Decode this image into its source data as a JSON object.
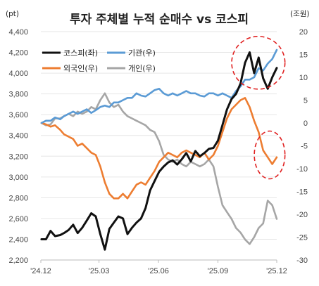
{
  "chart_data": {
    "type": "line",
    "title": "투자 주체별 누적 순매수 vs 코스피",
    "left_axis": {
      "unit_label": "(pt)",
      "ylim": [
        2200,
        4400
      ],
      "ticks": [
        2200,
        2400,
        2600,
        2800,
        3000,
        3200,
        3400,
        3600,
        3800,
        4000,
        4200,
        4400
      ],
      "tick_labels": [
        "2,200",
        "2,400",
        "2,600",
        "2,800",
        "3,000",
        "3,200",
        "3,400",
        "3,600",
        "3,800",
        "4,000",
        "4,200",
        "4,400"
      ]
    },
    "right_axis": {
      "unit_label": "(조원)",
      "ylim": [
        -30,
        20
      ],
      "ticks": [
        20,
        15,
        10,
        5,
        0,
        -5,
        -10,
        -15,
        -20,
        -25,
        -30
      ],
      "tick_labels": [
        "20",
        "15",
        "10",
        "5",
        "0",
        "-5",
        "-10",
        "-15",
        "-20",
        "-25",
        "-30"
      ]
    },
    "x_axis": {
      "range": [
        "2024-12",
        "2025-12"
      ],
      "ticks": [
        "2024-12",
        "2025-03",
        "2025-06",
        "2025-09",
        "2025-12"
      ],
      "tick_labels": [
        "'24.12",
        "'25.03",
        "'25.06",
        "'25.09",
        "'25.12"
      ]
    },
    "series": [
      {
        "name": "코스피(좌)",
        "axis": "left",
        "color": "#111111",
        "points": [
          [
            "2024-12-02",
            2400
          ],
          [
            "2024-12-09",
            2400
          ],
          [
            "2024-12-16",
            2480
          ],
          [
            "2024-12-23",
            2430
          ],
          [
            "2024-12-31",
            2440
          ],
          [
            "2025-01-06",
            2460
          ],
          [
            "2025-01-13",
            2490
          ],
          [
            "2025-01-20",
            2540
          ],
          [
            "2025-01-27",
            2460
          ],
          [
            "2025-02-03",
            2510
          ],
          [
            "2025-02-10",
            2580
          ],
          [
            "2025-02-17",
            2650
          ],
          [
            "2025-02-24",
            2620
          ],
          [
            "2025-03-03",
            2450
          ],
          [
            "2025-03-10",
            2300
          ],
          [
            "2025-03-17",
            2500
          ],
          [
            "2025-03-24",
            2560
          ],
          [
            "2025-03-31",
            2620
          ],
          [
            "2025-04-07",
            2600
          ],
          [
            "2025-04-14",
            2450
          ],
          [
            "2025-04-21",
            2510
          ],
          [
            "2025-04-28",
            2560
          ],
          [
            "2025-05-05",
            2600
          ],
          [
            "2025-05-12",
            2700
          ],
          [
            "2025-05-19",
            2870
          ],
          [
            "2025-05-26",
            2960
          ],
          [
            "2025-06-02",
            3050
          ],
          [
            "2025-06-09",
            3100
          ],
          [
            "2025-06-16",
            3140
          ],
          [
            "2025-06-23",
            3160
          ],
          [
            "2025-06-30",
            3120
          ],
          [
            "2025-07-07",
            3170
          ],
          [
            "2025-07-14",
            3230
          ],
          [
            "2025-07-21",
            3150
          ],
          [
            "2025-07-28",
            3250
          ],
          [
            "2025-08-04",
            3200
          ],
          [
            "2025-08-11",
            3230
          ],
          [
            "2025-08-18",
            3270
          ],
          [
            "2025-08-25",
            3280
          ],
          [
            "2025-09-01",
            3350
          ],
          [
            "2025-09-08",
            3500
          ],
          [
            "2025-09-15",
            3650
          ],
          [
            "2025-09-22",
            3750
          ],
          [
            "2025-09-29",
            3800
          ],
          [
            "2025-10-06",
            3900
          ],
          [
            "2025-10-13",
            4100
          ],
          [
            "2025-10-20",
            4200
          ],
          [
            "2025-10-27",
            4000
          ],
          [
            "2025-11-03",
            4150
          ],
          [
            "2025-11-10",
            3950
          ],
          [
            "2025-11-17",
            3850
          ],
          [
            "2025-11-24",
            3960
          ],
          [
            "2025-12-01",
            4050
          ]
        ]
      },
      {
        "name": "기관(우)",
        "axis": "right",
        "color": "#5b9bd5",
        "points": [
          [
            "2024-12-02",
            0
          ],
          [
            "2024-12-09",
            0.5
          ],
          [
            "2024-12-16",
            0.5
          ],
          [
            "2024-12-23",
            1.2
          ],
          [
            "2024-12-31",
            0.8
          ],
          [
            "2025-01-06",
            1.5
          ],
          [
            "2025-01-13",
            2.0
          ],
          [
            "2025-01-20",
            2.5
          ],
          [
            "2025-01-27",
            2.0
          ],
          [
            "2025-02-03",
            2.5
          ],
          [
            "2025-02-10",
            3.0
          ],
          [
            "2025-02-17",
            2.2
          ],
          [
            "2025-02-24",
            2.8
          ],
          [
            "2025-03-03",
            3.5
          ],
          [
            "2025-03-10",
            3.8
          ],
          [
            "2025-03-17",
            3.5
          ],
          [
            "2025-03-24",
            4.5
          ],
          [
            "2025-03-31",
            4.5
          ],
          [
            "2025-04-07",
            5.0
          ],
          [
            "2025-04-14",
            5.5
          ],
          [
            "2025-04-21",
            5.5
          ],
          [
            "2025-04-28",
            6.5
          ],
          [
            "2025-05-05",
            6.0
          ],
          [
            "2025-05-12",
            5.8
          ],
          [
            "2025-05-19",
            6.5
          ],
          [
            "2025-05-26",
            7.2
          ],
          [
            "2025-06-02",
            7.5
          ],
          [
            "2025-06-09",
            6.5
          ],
          [
            "2025-06-16",
            6.0
          ],
          [
            "2025-06-23",
            6.5
          ],
          [
            "2025-06-30",
            6.0
          ],
          [
            "2025-07-07",
            6.5
          ],
          [
            "2025-07-14",
            7.0
          ],
          [
            "2025-07-21",
            6.5
          ],
          [
            "2025-07-28",
            6.5
          ],
          [
            "2025-08-04",
            6.0
          ],
          [
            "2025-08-11",
            5.8
          ],
          [
            "2025-08-18",
            6.5
          ],
          [
            "2025-08-25",
            6.5
          ],
          [
            "2025-09-01",
            6.0
          ],
          [
            "2025-09-08",
            6.5
          ],
          [
            "2025-09-15",
            6.0
          ],
          [
            "2025-09-22",
            5.5
          ],
          [
            "2025-09-29",
            7.0
          ],
          [
            "2025-10-06",
            8.0
          ],
          [
            "2025-10-13",
            9.5
          ],
          [
            "2025-10-20",
            9.5
          ],
          [
            "2025-10-27",
            10.0
          ],
          [
            "2025-11-03",
            12.0
          ],
          [
            "2025-11-10",
            11.5
          ],
          [
            "2025-11-17",
            13.0
          ],
          [
            "2025-11-24",
            14.0
          ],
          [
            "2025-12-01",
            16.0
          ]
        ]
      },
      {
        "name": "외국인(우)",
        "axis": "right",
        "color": "#ed7d31",
        "points": [
          [
            "2024-12-02",
            0
          ],
          [
            "2024-12-09",
            -0.3
          ],
          [
            "2024-12-16",
            -0.8
          ],
          [
            "2024-12-23",
            -0.5
          ],
          [
            "2024-12-31",
            -1.5
          ],
          [
            "2025-01-06",
            -2.5
          ],
          [
            "2025-01-13",
            -3.0
          ],
          [
            "2025-01-20",
            -3.5
          ],
          [
            "2025-01-27",
            -5.0
          ],
          [
            "2025-02-03",
            -4.5
          ],
          [
            "2025-02-10",
            -5.5
          ],
          [
            "2025-02-17",
            -6.5
          ],
          [
            "2025-02-24",
            -7.0
          ],
          [
            "2025-03-03",
            -9.5
          ],
          [
            "2025-03-10",
            -13.0
          ],
          [
            "2025-03-17",
            -15.5
          ],
          [
            "2025-03-24",
            -16.5
          ],
          [
            "2025-03-31",
            -16.5
          ],
          [
            "2025-04-07",
            -15.5
          ],
          [
            "2025-04-14",
            -16.5
          ],
          [
            "2025-04-21",
            -15.0
          ],
          [
            "2025-04-28",
            -13.5
          ],
          [
            "2025-05-05",
            -13.0
          ],
          [
            "2025-05-12",
            -13.5
          ],
          [
            "2025-05-19",
            -12.0
          ],
          [
            "2025-05-26",
            -10.5
          ],
          [
            "2025-06-02",
            -8.5
          ],
          [
            "2025-06-09",
            -7.5
          ],
          [
            "2025-06-16",
            -6.5
          ],
          [
            "2025-06-23",
            -7.0
          ],
          [
            "2025-06-30",
            -7.5
          ],
          [
            "2025-07-07",
            -6.5
          ],
          [
            "2025-07-14",
            -6.0
          ],
          [
            "2025-07-21",
            -6.5
          ],
          [
            "2025-07-28",
            -7.0
          ],
          [
            "2025-08-04",
            -7.5
          ],
          [
            "2025-08-11",
            -6.5
          ],
          [
            "2025-08-18",
            -8.0
          ],
          [
            "2025-08-25",
            -7.0
          ],
          [
            "2025-09-01",
            -5.0
          ],
          [
            "2025-09-08",
            -2.0
          ],
          [
            "2025-09-15",
            1.0
          ],
          [
            "2025-09-22",
            3.0
          ],
          [
            "2025-09-29",
            4.0
          ],
          [
            "2025-10-06",
            5.0
          ],
          [
            "2025-10-13",
            5.5
          ],
          [
            "2025-10-20",
            3.5
          ],
          [
            "2025-10-27",
            0.5
          ],
          [
            "2025-11-03",
            -2.0
          ],
          [
            "2025-11-10",
            -6.0
          ],
          [
            "2025-11-17",
            -7.5
          ],
          [
            "2025-11-24",
            -9.0
          ],
          [
            "2025-12-01",
            -7.5
          ]
        ]
      },
      {
        "name": "개인(우)",
        "axis": "right",
        "color": "#a6a6a6",
        "points": [
          [
            "2024-12-02",
            0
          ],
          [
            "2024-12-09",
            -0.5
          ],
          [
            "2024-12-16",
            -0.3
          ],
          [
            "2024-12-23",
            1.0
          ],
          [
            "2024-12-31",
            1.0
          ],
          [
            "2025-01-06",
            1.5
          ],
          [
            "2025-01-13",
            2.0
          ],
          [
            "2025-01-20",
            1.5
          ],
          [
            "2025-01-27",
            2.5
          ],
          [
            "2025-02-03",
            2.0
          ],
          [
            "2025-02-10",
            2.5
          ],
          [
            "2025-02-17",
            3.5
          ],
          [
            "2025-02-24",
            3.0
          ],
          [
            "2025-03-03",
            5.0
          ],
          [
            "2025-03-10",
            6.5
          ],
          [
            "2025-03-17",
            4.5
          ],
          [
            "2025-03-24",
            3.5
          ],
          [
            "2025-03-31",
            4.0
          ],
          [
            "2025-04-07",
            2.5
          ],
          [
            "2025-04-14",
            1.5
          ],
          [
            "2025-04-21",
            1.0
          ],
          [
            "2025-04-28",
            0.5
          ],
          [
            "2025-05-05",
            0.0
          ],
          [
            "2025-05-12",
            -0.5
          ],
          [
            "2025-05-19",
            -1.5
          ],
          [
            "2025-05-26",
            -2.0
          ],
          [
            "2025-06-02",
            -4.0
          ],
          [
            "2025-06-09",
            -7.0
          ],
          [
            "2025-06-16",
            -8.0
          ],
          [
            "2025-06-23",
            -8.5
          ],
          [
            "2025-06-30",
            -8.0
          ],
          [
            "2025-07-07",
            -9.0
          ],
          [
            "2025-07-14",
            -9.5
          ],
          [
            "2025-07-21",
            -8.5
          ],
          [
            "2025-07-28",
            -9.0
          ],
          [
            "2025-08-04",
            -9.5
          ],
          [
            "2025-08-11",
            -9.0
          ],
          [
            "2025-08-18",
            -8.0
          ],
          [
            "2025-08-25",
            -9.5
          ],
          [
            "2025-09-01",
            -14.0
          ],
          [
            "2025-09-08",
            -18.0
          ],
          [
            "2025-09-15",
            -19.5
          ],
          [
            "2025-09-22",
            -21.0
          ],
          [
            "2025-09-29",
            -23.0
          ],
          [
            "2025-10-06",
            -24.0
          ],
          [
            "2025-10-13",
            -25.5
          ],
          [
            "2025-10-20",
            -26.5
          ],
          [
            "2025-10-27",
            -25.0
          ],
          [
            "2025-11-03",
            -23.0
          ],
          [
            "2025-11-10",
            -22.0
          ],
          [
            "2025-11-17",
            -17.0
          ],
          [
            "2025-11-24",
            -18.0
          ],
          [
            "2025-12-01",
            -21.0
          ]
        ]
      }
    ],
    "legend": {
      "placement": "top-left",
      "entries": [
        "코스피(좌)",
        "기관(우)",
        "외국인(우)",
        "개인(우)"
      ]
    },
    "grid": true,
    "annotations": [
      {
        "type": "dashed-ellipse",
        "color": "#e02020",
        "around": "kospi-and-institution-peak",
        "x_range": [
          "2025-10-01",
          "2025-12-05"
        ],
        "y_range_left": [
          3900,
          4300
        ]
      },
      {
        "type": "dashed-ellipse",
        "color": "#e02020",
        "around": "foreign-decline",
        "x_range": [
          "2025-11-05",
          "2025-12-05"
        ],
        "y_range_right": [
          -11,
          -3
        ]
      }
    ]
  }
}
